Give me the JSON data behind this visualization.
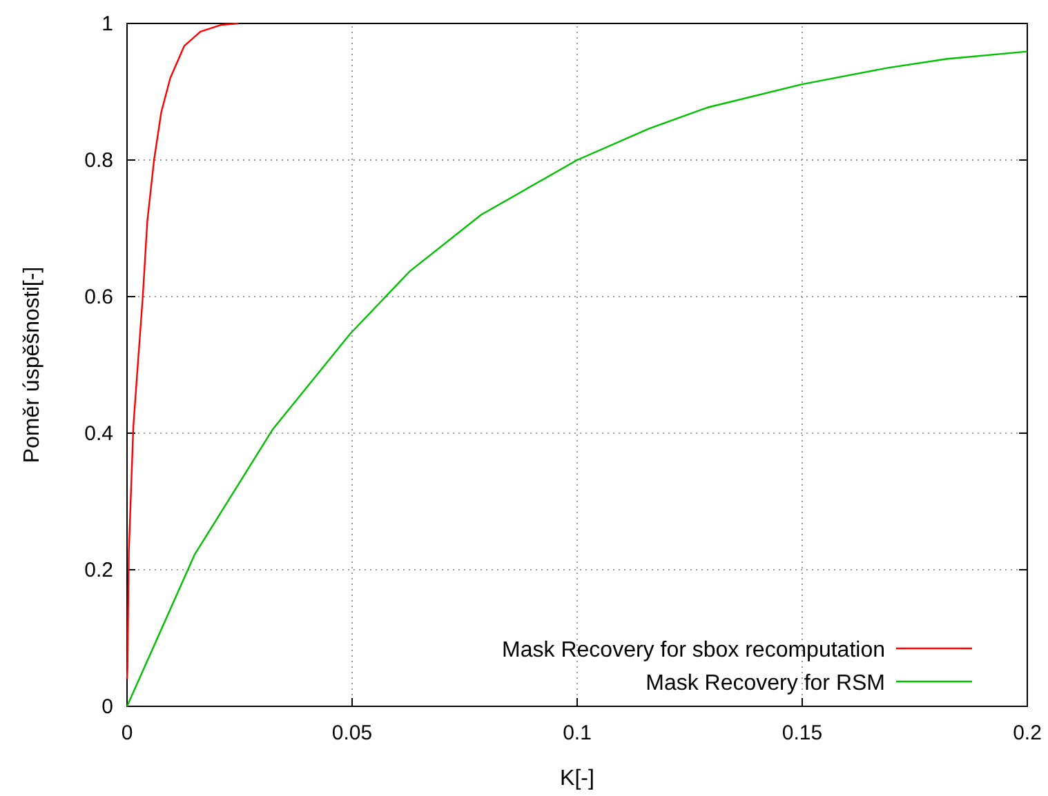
{
  "chart_data": {
    "type": "line",
    "xlabel": "K[-]",
    "ylabel": "Poměr úspěšnosti[-]",
    "xlim": [
      0,
      0.2
    ],
    "ylim": [
      0,
      1
    ],
    "xticks": [
      0,
      0.05,
      0.1,
      0.15,
      0.2
    ],
    "yticks": [
      0,
      0.2,
      0.4,
      0.6,
      0.8,
      1
    ],
    "grid": true,
    "legend": "bottom right",
    "line_style": "solid",
    "marker": "none",
    "series": [
      {
        "name": "Mask Recovery for sbox recomputation",
        "color": "#ff0000",
        "x": [
          0,
          0.0001,
          0.0004,
          0.0014,
          0.0025,
          0.0035,
          0.0045,
          0.006,
          0.0076,
          0.0096,
          0.0127,
          0.0163,
          0.021,
          0.0247
        ],
        "values": [
          0.04,
          0.055,
          0.226,
          0.41,
          0.51,
          0.6,
          0.71,
          0.8,
          0.87,
          0.92,
          0.967,
          0.988,
          0.998,
          1
        ]
      },
      {
        "name": "Mask Recovery for RSM",
        "color": "#00c000",
        "x": [
          0,
          0.015,
          0.0323,
          0.0495,
          0.0628,
          0.0787,
          0.1,
          0.116,
          0.129,
          0.15,
          0.169,
          0.182,
          0.2
        ],
        "values": [
          0,
          0.222,
          0.405,
          0.545,
          0.637,
          0.72,
          0.8,
          0.846,
          0.877,
          0.911,
          0.935,
          0.948,
          0.959
        ]
      }
    ]
  }
}
